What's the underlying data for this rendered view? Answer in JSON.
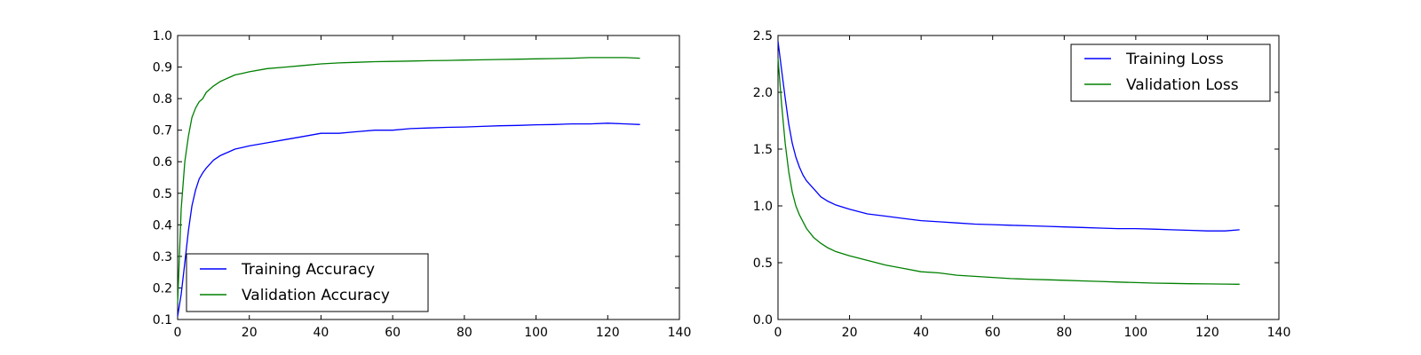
{
  "chart_data": [
    {
      "type": "line",
      "title": "",
      "xlabel": "",
      "ylabel": "",
      "xlim": [
        0,
        140
      ],
      "ylim": [
        0.1,
        1.0
      ],
      "x_ticks": [
        "0",
        "20",
        "40",
        "60",
        "80",
        "100",
        "120",
        "140"
      ],
      "y_ticks": [
        "0.1",
        "0.2",
        "0.3",
        "0.4",
        "0.5",
        "0.6",
        "0.7",
        "0.8",
        "0.9",
        "1.0"
      ],
      "grid": false,
      "legend": "lower-left",
      "series": [
        {
          "name": "Training Accuracy",
          "color": "#0000ff",
          "x": [
            0,
            1,
            2,
            3,
            4,
            5,
            6,
            7,
            8,
            10,
            12,
            14,
            16,
            18,
            20,
            25,
            30,
            35,
            40,
            45,
            50,
            55,
            60,
            65,
            70,
            75,
            80,
            85,
            90,
            95,
            100,
            105,
            110,
            115,
            120,
            125,
            129
          ],
          "y": [
            0.11,
            0.18,
            0.28,
            0.38,
            0.46,
            0.51,
            0.545,
            0.565,
            0.58,
            0.605,
            0.62,
            0.63,
            0.64,
            0.645,
            0.65,
            0.66,
            0.67,
            0.68,
            0.69,
            0.69,
            0.695,
            0.7,
            0.7,
            0.705,
            0.707,
            0.709,
            0.71,
            0.712,
            0.714,
            0.715,
            0.717,
            0.718,
            0.72,
            0.72,
            0.722,
            0.72,
            0.718
          ]
        },
        {
          "name": "Validation Accuracy",
          "color": "#008000",
          "x": [
            0,
            1,
            2,
            3,
            4,
            5,
            6,
            7,
            8,
            10,
            12,
            14,
            16,
            18,
            20,
            25,
            30,
            35,
            40,
            45,
            50,
            55,
            60,
            65,
            70,
            75,
            80,
            85,
            90,
            95,
            100,
            105,
            110,
            115,
            120,
            125,
            129
          ],
          "y": [
            0.15,
            0.45,
            0.6,
            0.68,
            0.74,
            0.77,
            0.79,
            0.8,
            0.82,
            0.84,
            0.855,
            0.865,
            0.875,
            0.88,
            0.885,
            0.895,
            0.9,
            0.905,
            0.91,
            0.913,
            0.915,
            0.917,
            0.918,
            0.919,
            0.92,
            0.921,
            0.922,
            0.923,
            0.924,
            0.925,
            0.926,
            0.927,
            0.928,
            0.93,
            0.93,
            0.93,
            0.928
          ]
        }
      ]
    },
    {
      "type": "line",
      "title": "",
      "xlabel": "",
      "ylabel": "",
      "xlim": [
        0,
        140
      ],
      "ylim": [
        0.0,
        2.5
      ],
      "x_ticks": [
        "0",
        "20",
        "40",
        "60",
        "80",
        "100",
        "120",
        "140"
      ],
      "y_ticks": [
        "0.0",
        "0.5",
        "1.0",
        "1.5",
        "2.0",
        "2.5"
      ],
      "grid": false,
      "legend": "upper-right",
      "series": [
        {
          "name": "Training Loss",
          "color": "#0000ff",
          "x": [
            0,
            1,
            2,
            3,
            4,
            5,
            6,
            7,
            8,
            10,
            12,
            14,
            16,
            18,
            20,
            25,
            30,
            35,
            40,
            45,
            50,
            55,
            60,
            65,
            70,
            75,
            80,
            85,
            90,
            95,
            100,
            105,
            110,
            115,
            120,
            125,
            129
          ],
          "y": [
            2.45,
            2.2,
            1.95,
            1.72,
            1.55,
            1.43,
            1.34,
            1.27,
            1.22,
            1.15,
            1.08,
            1.04,
            1.01,
            0.99,
            0.97,
            0.93,
            0.91,
            0.89,
            0.87,
            0.86,
            0.85,
            0.84,
            0.835,
            0.83,
            0.825,
            0.82,
            0.815,
            0.81,
            0.805,
            0.8,
            0.8,
            0.795,
            0.79,
            0.785,
            0.78,
            0.78,
            0.79
          ]
        },
        {
          "name": "Validation Loss",
          "color": "#008000",
          "x": [
            0,
            1,
            2,
            3,
            4,
            5,
            6,
            7,
            8,
            10,
            12,
            14,
            16,
            18,
            20,
            25,
            30,
            35,
            40,
            45,
            50,
            55,
            60,
            65,
            70,
            75,
            80,
            85,
            90,
            95,
            100,
            105,
            110,
            115,
            120,
            125,
            129
          ],
          "y": [
            2.3,
            1.9,
            1.55,
            1.3,
            1.12,
            1.0,
            0.92,
            0.86,
            0.8,
            0.72,
            0.67,
            0.63,
            0.6,
            0.58,
            0.56,
            0.52,
            0.48,
            0.45,
            0.42,
            0.41,
            0.39,
            0.38,
            0.37,
            0.36,
            0.355,
            0.35,
            0.345,
            0.34,
            0.335,
            0.33,
            0.325,
            0.32,
            0.318,
            0.315,
            0.313,
            0.312,
            0.31
          ]
        }
      ]
    }
  ]
}
